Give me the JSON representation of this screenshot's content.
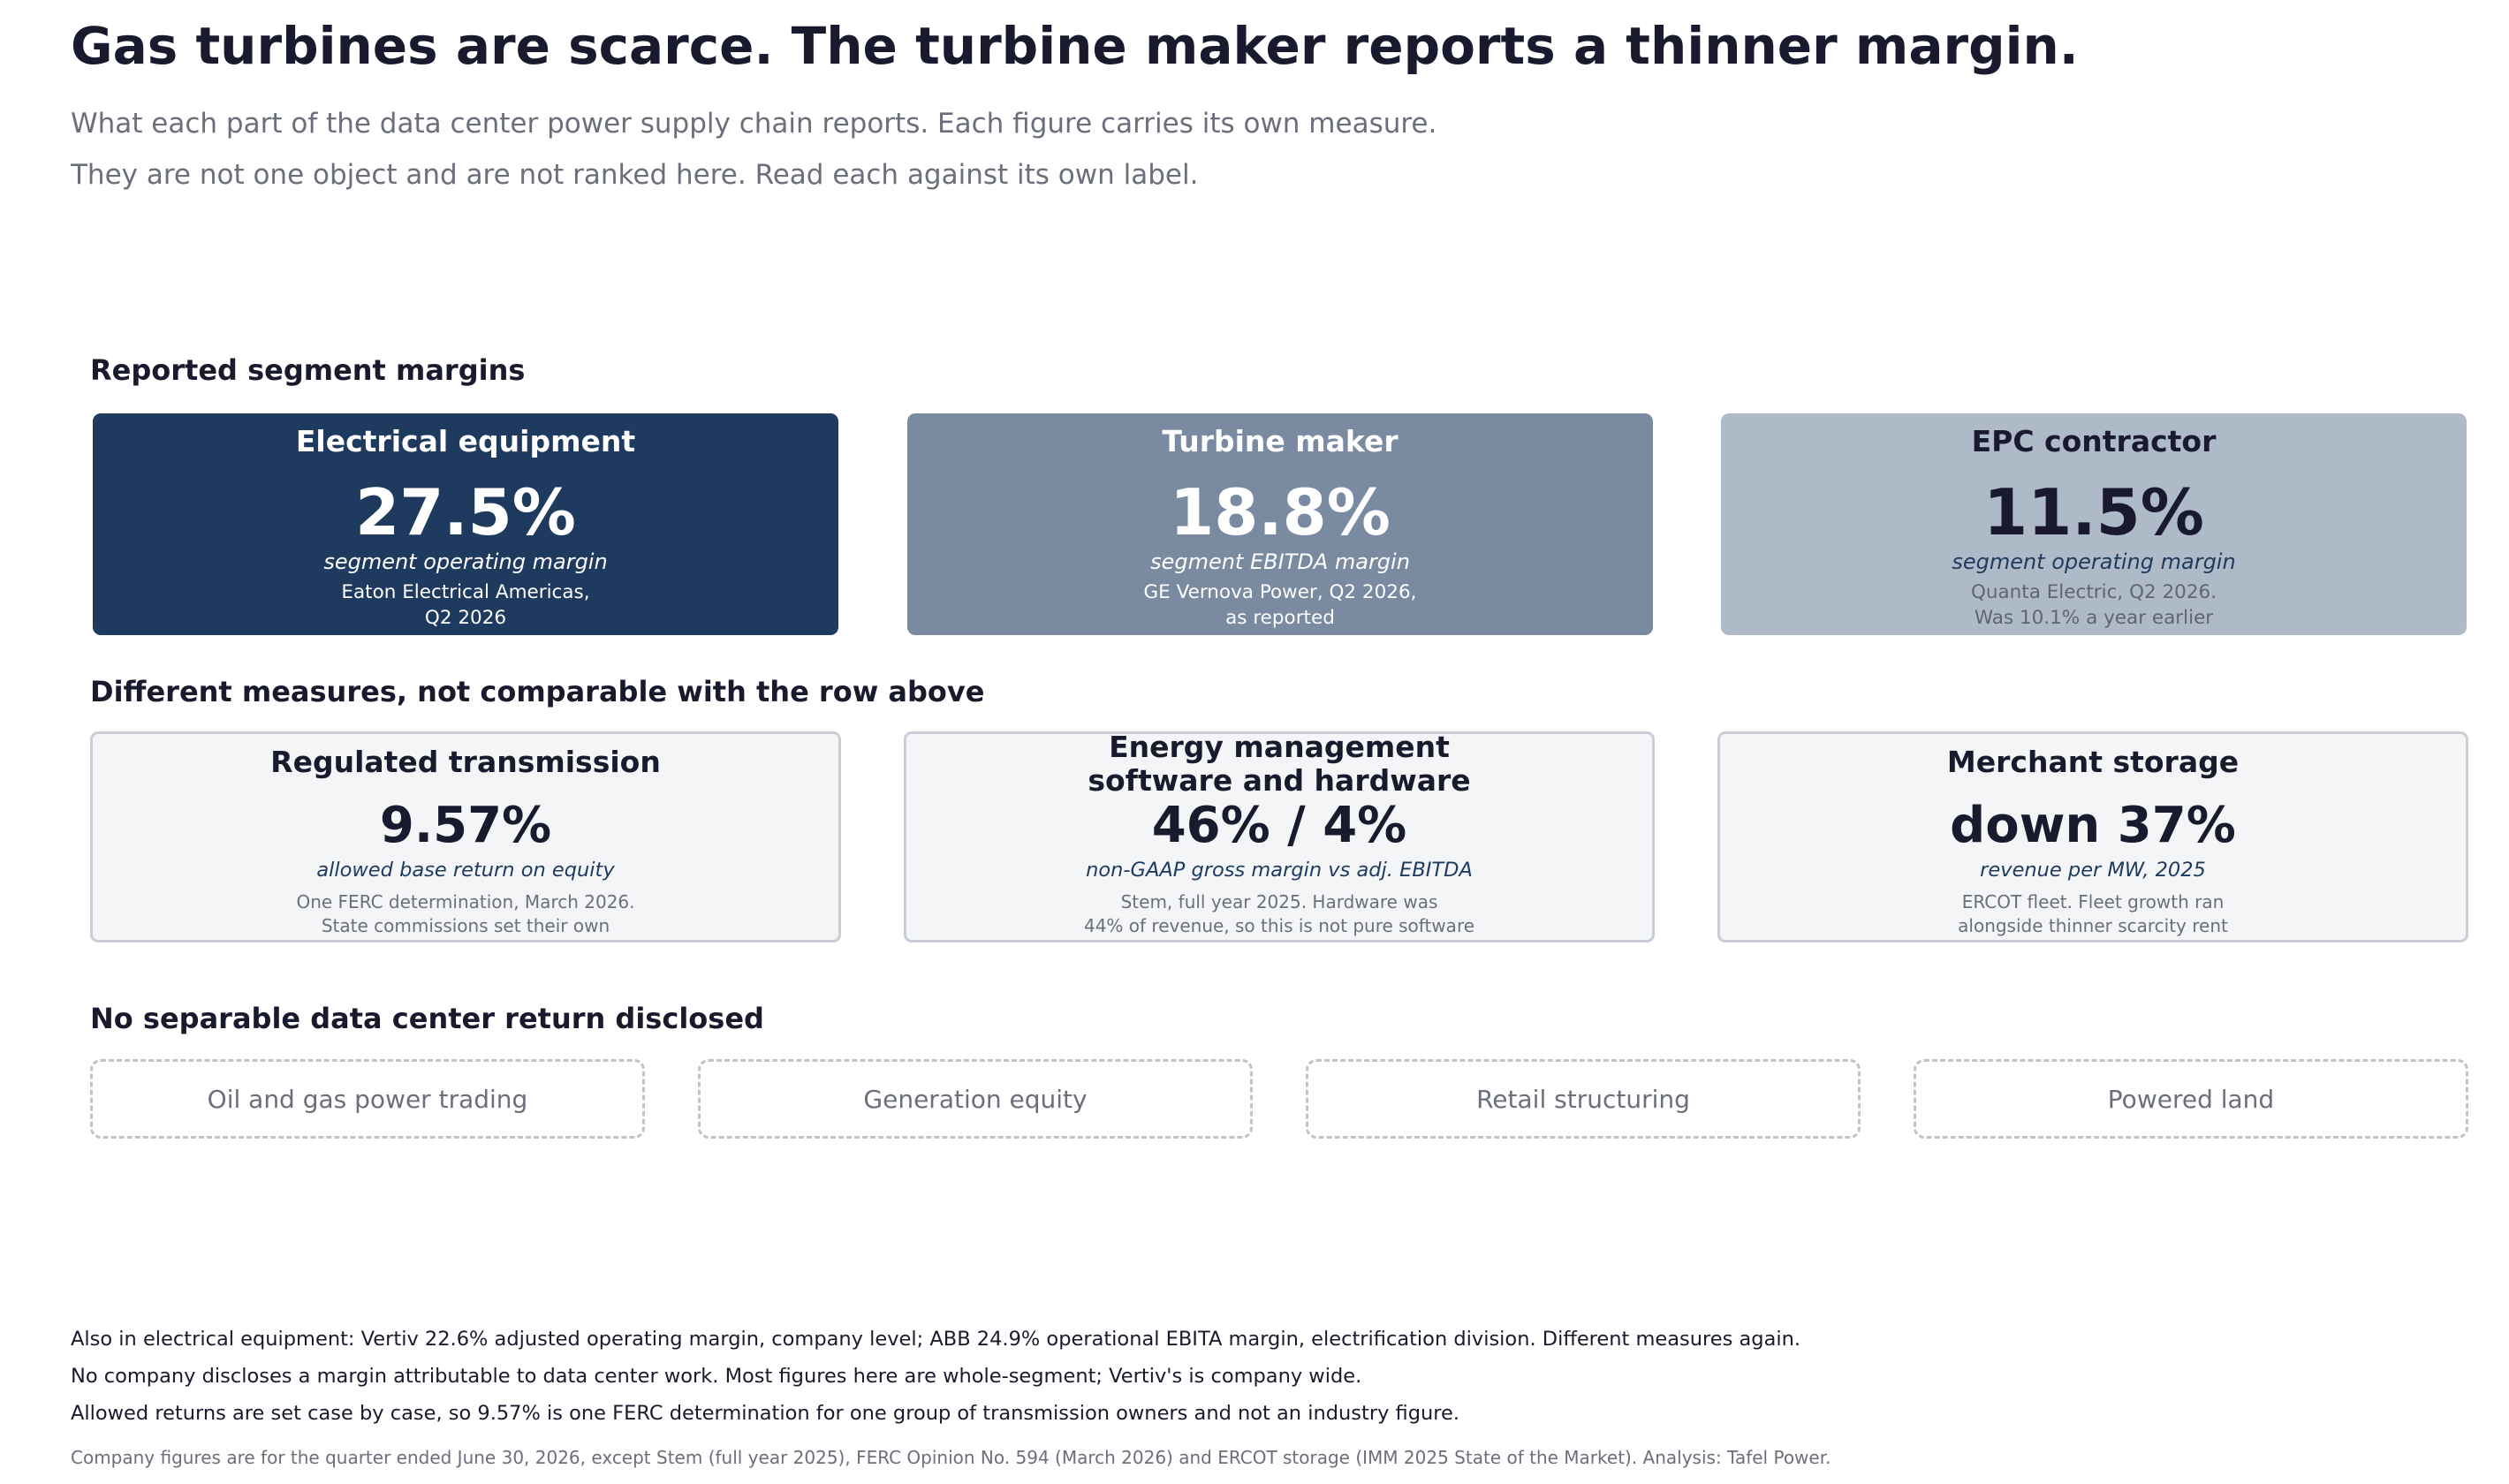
{
  "title": "Gas turbines are scarce. The turbine maker reports a thinner margin.",
  "subtitle_lines": [
    "What each part of the data center power supply chain reports. Each figure carries its own measure.",
    "They are not one object and are not ranked here. Read each against its own label."
  ],
  "chart_data": {
    "type": "table",
    "title": "Gas turbines are scarce. The turbine maker reports a thinner margin.",
    "sections": [
      {
        "heading": "Reported segment margins",
        "items": [
          {
            "name": "Electrical equipment",
            "value": "27.5%",
            "numeric": 27.5,
            "measure": "segment operating margin",
            "note_lines": [
              "Eaton Electrical Americas,",
              "Q2 2026"
            ],
            "color": "#1f3a5f"
          },
          {
            "name": "Turbine maker",
            "value": "18.8%",
            "numeric": 18.8,
            "measure": "segment EBITDA margin",
            "note_lines": [
              "GE Vernova Power, Q2 2026,",
              "as reported"
            ],
            "color": "#7a8aa0"
          },
          {
            "name": "EPC contractor",
            "value": "11.5%",
            "numeric": 11.5,
            "measure": "segment operating margin",
            "note_lines": [
              "Quanta Electric, Q2 2026.",
              "Was 10.1% a year earlier"
            ],
            "color": "#afbac8"
          }
        ]
      },
      {
        "heading": "Different measures, not comparable with the row above",
        "items": [
          {
            "name_lines": [
              "Regulated transmission"
            ],
            "value": "9.57%",
            "measure": "allowed base return on equity",
            "note_lines": [
              "One FERC determination, March 2026.",
              "State commissions set their own"
            ]
          },
          {
            "name_lines": [
              "Energy management",
              "software and hardware"
            ],
            "value": "46% / 4%",
            "measure": "non-GAAP gross margin vs adj. EBITDA",
            "note_lines": [
              "Stem, full year 2025. Hardware was",
              "44% of revenue, so this is not pure software"
            ]
          },
          {
            "name_lines": [
              "Merchant storage"
            ],
            "value": "down 37%",
            "measure": "revenue per MW, 2025",
            "note_lines": [
              "ERCOT fleet. Fleet growth ran",
              "alongside thinner scarcity rent"
            ]
          }
        ]
      },
      {
        "heading": "No separable data center return disclosed",
        "items": [
          "Oil and gas power trading",
          "Generation equity",
          "Retail structuring",
          "Powered land"
        ]
      }
    ]
  },
  "footnotes": [
    "Also in electrical equipment: Vertiv 22.6% adjusted operating margin, company level; ABB 24.9% operational EBITA margin, electrification division. Different measures again.",
    "No company discloses a margin attributable to data center work. Most figures here are whole-segment; Vertiv's is company wide.",
    "Allowed returns are set case by case, so 9.57% is one FERC determination for one group of transmission owners and not an industry figure."
  ],
  "source": "Company figures are for the quarter ended June 30, 2026, except Stem (full year 2025), FERC Opinion No. 594 (March 2026) and ERCOT storage (IMM 2025 State of the Market).  Analysis: Tafel Power."
}
